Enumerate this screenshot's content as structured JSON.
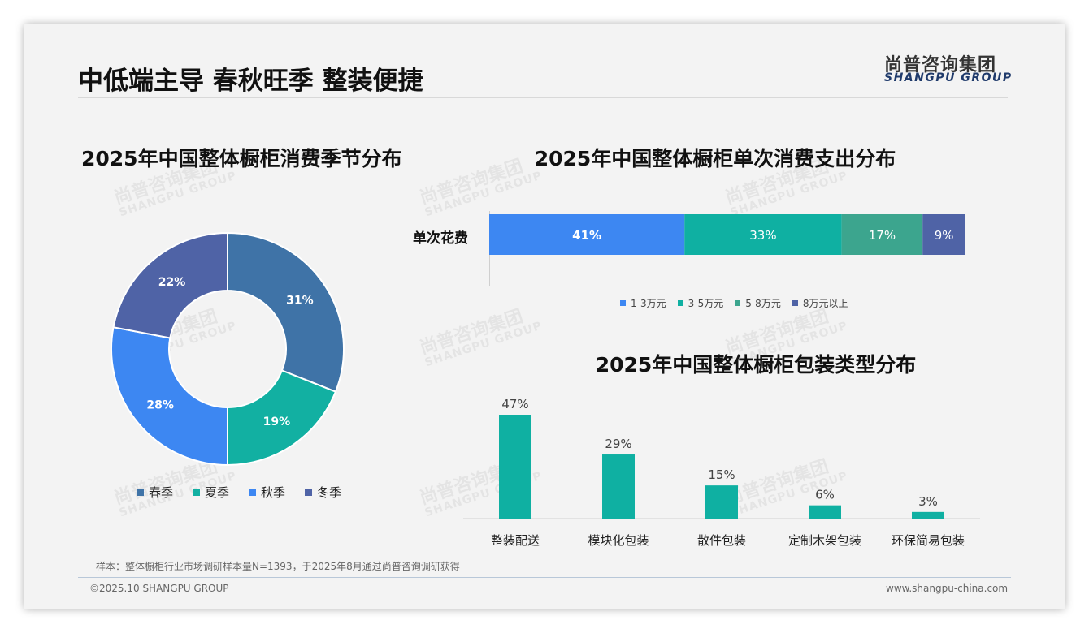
{
  "header": {
    "title": "中低端主导 春秋旺季 整装便捷",
    "brand_cn": "尚普咨询集团",
    "brand_en": "SHANGPU GROUP"
  },
  "watermark": {
    "cn": "尚普咨询集团",
    "en": "SHANGPU GROUP"
  },
  "chart_data": [
    {
      "type": "pie",
      "title": "2025年中国整体橱柜消费季节分布",
      "categories": [
        "春季",
        "夏季",
        "秋季",
        "冬季"
      ],
      "values": [
        31,
        19,
        28,
        22
      ],
      "labels": [
        "31%",
        "19%",
        "28%",
        "22%"
      ],
      "colors": [
        "#3f73a7",
        "#12b0a2",
        "#3d87f2",
        "#4f63a6"
      ],
      "legend_position": "bottom"
    },
    {
      "type": "bar",
      "orientation": "horizontal-stacked",
      "title": "2025年中国整体橱柜单次消费支出分布",
      "categories": [
        "单次花费"
      ],
      "series": [
        {
          "name": "1-3万元",
          "values": [
            41
          ],
          "label": "41%",
          "color": "#3d87f2"
        },
        {
          "name": "3-5万元",
          "values": [
            33
          ],
          "label": "33%",
          "color": "#0fb0a2"
        },
        {
          "name": "5-8万元",
          "values": [
            17
          ],
          "label": "17%",
          "color": "#3ca58e"
        },
        {
          "name": "8万元以上",
          "values": [
            9
          ],
          "label": "9%",
          "color": "#4f63a6"
        }
      ],
      "legend_position": "bottom"
    },
    {
      "type": "bar",
      "title": "2025年中国整体橱柜包装类型分布",
      "categories": [
        "整装配送",
        "模块化包装",
        "散件包装",
        "定制木架包装",
        "环保简易包装"
      ],
      "values": [
        47,
        29,
        15,
        6,
        3
      ],
      "labels": [
        "47%",
        "29%",
        "15%",
        "6%",
        "3%"
      ],
      "color": "#0fb0a2"
    }
  ],
  "footer": {
    "note": "样本：整体橱柜行业市场调研样本量N=1393，于2025年8月通过尚普咨询调研获得",
    "copyright": "©2025.10 SHANGPU GROUP",
    "website": "www.shangpu-china.com"
  }
}
